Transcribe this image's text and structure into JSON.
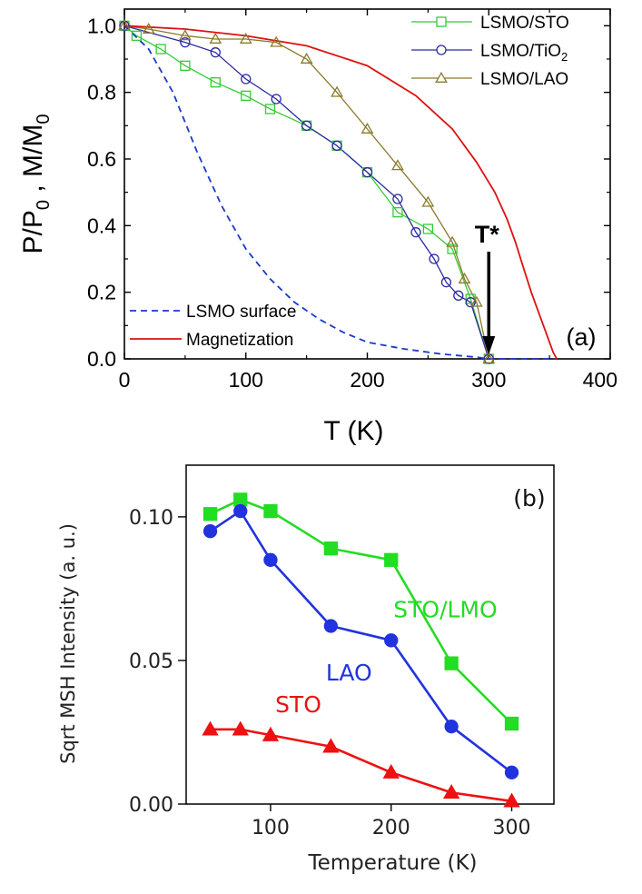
{
  "chart_data": [
    {
      "panel": "(a)",
      "type": "line",
      "xlabel": "T (K)",
      "ylabel_parts": [
        "P/P",
        "0",
        " ,  M/M",
        "0"
      ],
      "xlim": [
        0,
        400
      ],
      "ylim": [
        0,
        1.05
      ],
      "xticks": [
        0,
        100,
        200,
        300,
        400
      ],
      "xtick_labels": [
        "0",
        "100",
        "200",
        "300",
        "400"
      ],
      "yticks": [
        0.0,
        0.2,
        0.4,
        0.6,
        0.8,
        1.0
      ],
      "ytick_labels": [
        "0.0",
        "0.2",
        "0.4",
        "0.6",
        "0.8",
        "1.0"
      ],
      "legend_position": "top-right",
      "legend_bottom_position": "bottom-left",
      "annotation": {
        "text": "T*",
        "x": 300,
        "y": 0.0
      },
      "series": [
        {
          "name": "LSMO/STO",
          "name_base": "LSMO/STO",
          "name_sub": "",
          "color": "#33cc33",
          "marker": "square",
          "x": [
            0,
            10,
            30,
            50,
            75,
            100,
            120,
            150,
            175,
            200,
            225,
            250,
            270,
            285,
            300
          ],
          "y": [
            1.0,
            0.97,
            0.93,
            0.88,
            0.83,
            0.79,
            0.75,
            0.7,
            0.64,
            0.56,
            0.44,
            0.39,
            0.33,
            0.18,
            0.0
          ]
        },
        {
          "name": "LSMO/TiO2",
          "name_base": "LSMO/TiO",
          "name_sub": "2",
          "color": "#2a2aa0",
          "marker": "circle",
          "x": [
            0,
            50,
            75,
            100,
            125,
            150,
            175,
            200,
            225,
            240,
            255,
            265,
            275,
            285,
            300
          ],
          "y": [
            1.0,
            0.95,
            0.92,
            0.84,
            0.78,
            0.7,
            0.64,
            0.56,
            0.48,
            0.38,
            0.3,
            0.23,
            0.19,
            0.17,
            0.0
          ]
        },
        {
          "name": "LSMO/LAO",
          "name_base": "LSMO/LAO",
          "name_sub": "",
          "color": "#8a7a2a",
          "marker": "triangle",
          "x": [
            0,
            20,
            50,
            75,
            100,
            125,
            150,
            175,
            200,
            225,
            250,
            270,
            280,
            290,
            300
          ],
          "y": [
            1.0,
            0.99,
            0.97,
            0.96,
            0.96,
            0.95,
            0.9,
            0.8,
            0.69,
            0.58,
            0.47,
            0.35,
            0.24,
            0.17,
            0.0
          ]
        },
        {
          "name": "LSMO surface",
          "color": "#1a3acc",
          "dash": true,
          "x": [
            0,
            20,
            40,
            60,
            80,
            100,
            120,
            140,
            160,
            180,
            200,
            230,
            260,
            290,
            300,
            340,
            355
          ],
          "y": [
            1.0,
            0.93,
            0.8,
            0.62,
            0.46,
            0.33,
            0.24,
            0.17,
            0.12,
            0.08,
            0.05,
            0.03,
            0.015,
            0.005,
            0.0,
            0.0,
            0.0
          ]
        },
        {
          "name": "Magnetization",
          "color": "#dd1111",
          "x": [
            0,
            50,
            100,
            150,
            200,
            240,
            270,
            290,
            305,
            315,
            322,
            328,
            335,
            342,
            348,
            353,
            356
          ],
          "y": [
            1.0,
            0.99,
            0.97,
            0.94,
            0.88,
            0.79,
            0.69,
            0.59,
            0.5,
            0.42,
            0.35,
            0.28,
            0.2,
            0.13,
            0.07,
            0.02,
            0.0
          ]
        }
      ]
    },
    {
      "panel": "(b)",
      "type": "line",
      "xlabel": "Temperature (K)",
      "ylabel": "Sqrt MSH Intensity (a. u.)",
      "xlim": [
        30,
        335
      ],
      "ylim": [
        0,
        0.118
      ],
      "xticks": [
        100,
        200,
        300
      ],
      "xtick_labels": [
        "100",
        "200",
        "300"
      ],
      "yticks": [
        0.0,
        0.05,
        0.1
      ],
      "ytick_labels": [
        "0.00",
        "0.05",
        "0.10"
      ],
      "series": [
        {
          "name": "STO/LMO",
          "color": "#22dd22",
          "marker": "square",
          "x": [
            50,
            75,
            100,
            150,
            200,
            250,
            300
          ],
          "y": [
            0.101,
            0.106,
            0.102,
            0.089,
            0.085,
            0.049,
            0.028
          ],
          "label_anchor": [
            245,
            0.065
          ]
        },
        {
          "name": "LAO",
          "color": "#2233dd",
          "marker": "circle",
          "x": [
            50,
            75,
            100,
            150,
            200,
            250,
            300
          ],
          "y": [
            0.095,
            0.102,
            0.085,
            0.062,
            0.057,
            0.027,
            0.011
          ],
          "label_anchor": [
            165,
            0.043
          ]
        },
        {
          "name": "STO",
          "color": "#ee1111",
          "marker": "triangle",
          "x": [
            50,
            75,
            100,
            150,
            200,
            250,
            300
          ],
          "y": [
            0.026,
            0.026,
            0.024,
            0.02,
            0.011,
            0.004,
            0.001
          ],
          "label_anchor": [
            123,
            0.032
          ]
        }
      ]
    }
  ]
}
